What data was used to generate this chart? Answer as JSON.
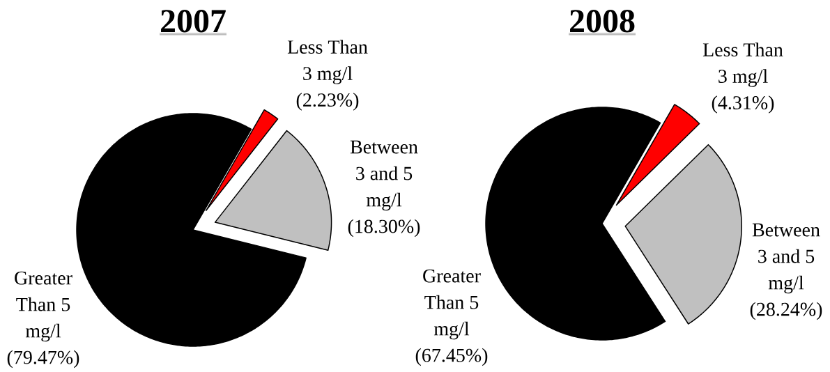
{
  "chart_data": [
    {
      "type": "pie",
      "title": "2007",
      "categories": [
        "Less Than 3 mg/l",
        "Between 3 and 5 mg/l",
        "Greater Than 5 mg/l"
      ],
      "values": [
        2.23,
        18.3,
        79.47
      ],
      "colors": [
        "#ff0000",
        "#c0c0c0",
        "#000000"
      ],
      "value_labels": [
        "(2.23%)",
        "(18.30%)",
        "(79.47%)"
      ]
    },
    {
      "type": "pie",
      "title": "2008",
      "categories": [
        "Less Than 3 mg/l",
        "Between 3 and 5 mg/l",
        "Greater Than 5 mg/l"
      ],
      "values": [
        4.31,
        28.24,
        67.45
      ],
      "colors": [
        "#ff0000",
        "#c0c0c0",
        "#000000"
      ],
      "value_labels": [
        "(4.31%)",
        "(28.24%)",
        "(67.45%)"
      ]
    }
  ]
}
